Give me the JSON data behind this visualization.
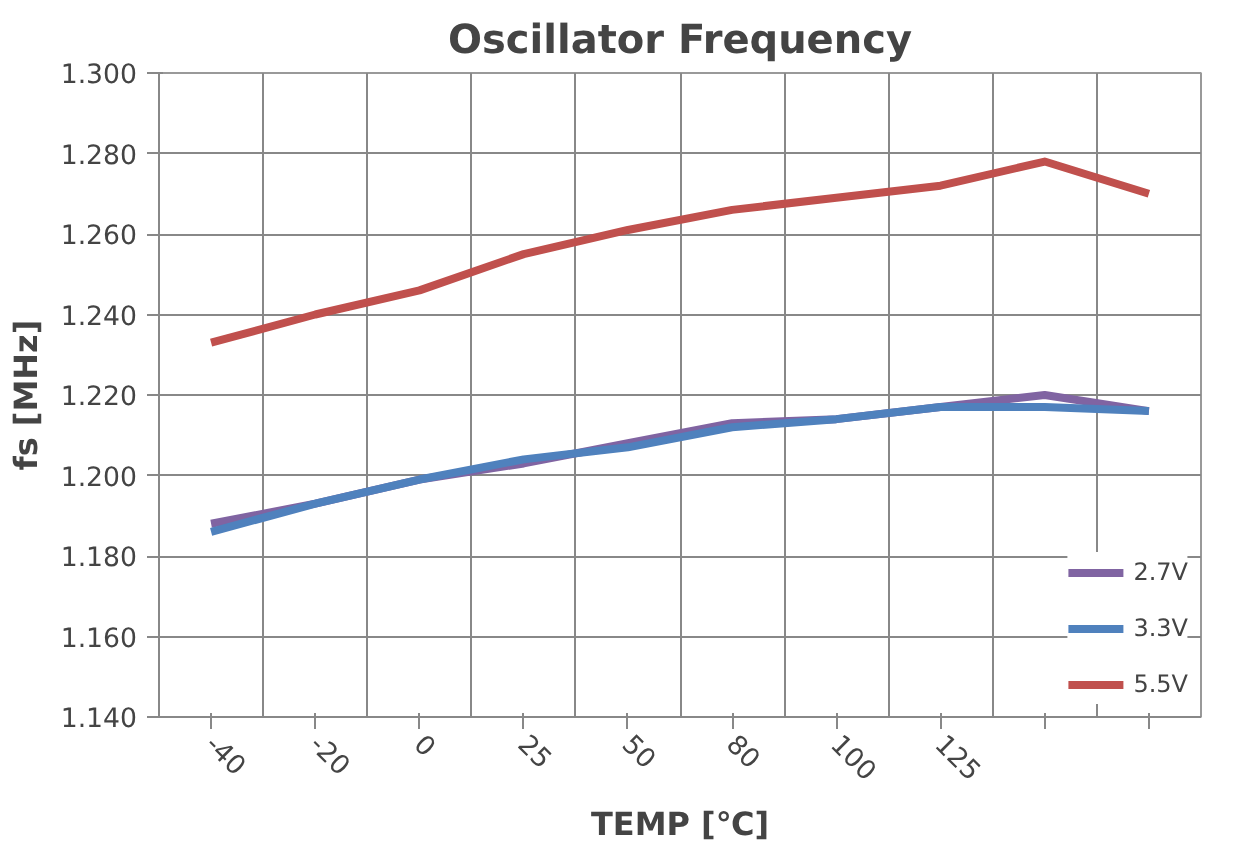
{
  "chart_data": {
    "type": "line",
    "title": "Oscillator Frequency",
    "xlabel": "TEMP [℃]",
    "ylabel": "fs [MHz]",
    "categories": [
      "-40",
      "-20",
      "0",
      "25",
      "50",
      "80",
      "100",
      "125",
      null,
      null
    ],
    "series": [
      {
        "name": "2.7V",
        "color": "#8064a2",
        "values": [
          1.188,
          1.193,
          1.199,
          1.203,
          1.208,
          1.213,
          1.214,
          1.217,
          1.22,
          1.216
        ]
      },
      {
        "name": "3.3V",
        "color": "#4f81bd",
        "values": [
          1.186,
          1.193,
          1.199,
          1.204,
          1.207,
          1.212,
          1.214,
          1.217,
          1.217,
          1.216
        ]
      },
      {
        "name": "5.5V",
        "color": "#c0504d",
        "values": [
          1.233,
          1.24,
          1.246,
          1.255,
          1.261,
          1.266,
          1.269,
          1.272,
          1.278,
          1.27
        ]
      }
    ],
    "ylim": [
      1.14,
      1.3
    ],
    "yticks": [
      {
        "value": 1.14,
        "label": "1.140"
      },
      {
        "value": 1.16,
        "label": "1.160"
      },
      {
        "value": 1.18,
        "label": "1.180"
      },
      {
        "value": 1.2,
        "label": "1.200"
      },
      {
        "value": 1.22,
        "label": "1.220"
      },
      {
        "value": 1.24,
        "label": "1.240"
      },
      {
        "value": 1.26,
        "label": "1.260"
      },
      {
        "value": 1.28,
        "label": "1.280"
      },
      {
        "value": 1.3,
        "label": "1.300"
      }
    ],
    "grid": true,
    "legend": "bottom right",
    "marker": "none",
    "line_style": "solid"
  }
}
